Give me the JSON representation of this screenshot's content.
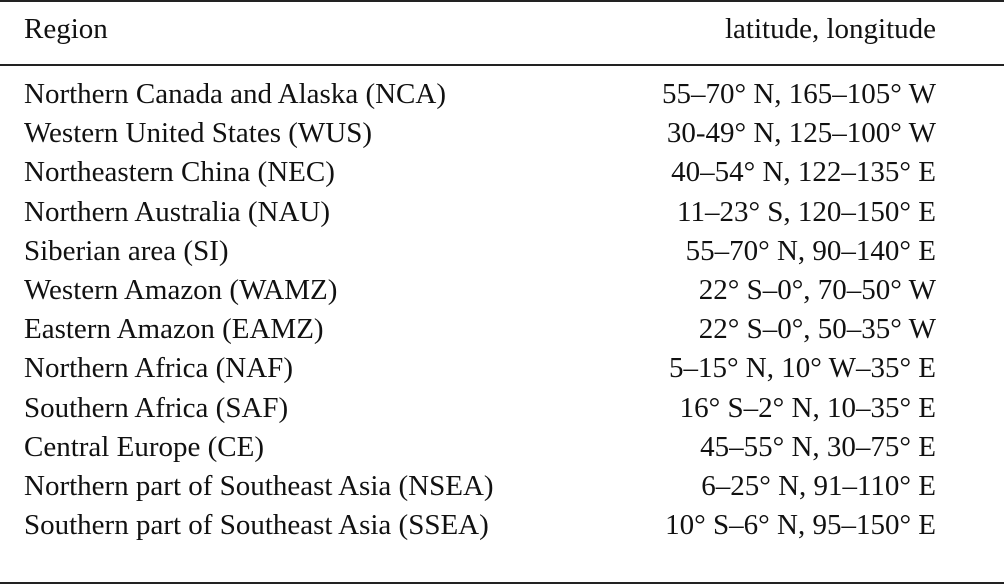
{
  "table": {
    "header": [
      "Region",
      "latitude, longitude"
    ],
    "rows": [
      [
        "Northern Canada and Alaska (NCA)",
        "55–70° N, 165–105° W"
      ],
      [
        "Western United States (WUS)",
        "30-49° N, 125–100° W"
      ],
      [
        "Northeastern China (NEC)",
        "40–54° N, 122–135° E"
      ],
      [
        "Northern Australia (NAU)",
        "11–23° S, 120–150° E"
      ],
      [
        "Siberian area (SI)",
        "55–70° N, 90–140° E"
      ],
      [
        "Western Amazon (WAMZ)",
        "22° S–0°, 70–50° W"
      ],
      [
        "Eastern Amazon (EAMZ)",
        "22° S–0°, 50–35° W"
      ],
      [
        "Northern Africa (NAF)",
        "5–15° N, 10° W–35° E"
      ],
      [
        "Southern Africa (SAF)",
        "16° S–2° N, 10–35° E"
      ],
      [
        "Central Europe (CE)",
        "45–55° N, 30–75° E"
      ],
      [
        "Northern part of Southeast Asia (NSEA)",
        "6–25° N, 91–110° E"
      ],
      [
        "Southern part of Southeast Asia (SSEA)",
        "10° S–6° N, 95–150° E"
      ]
    ]
  }
}
